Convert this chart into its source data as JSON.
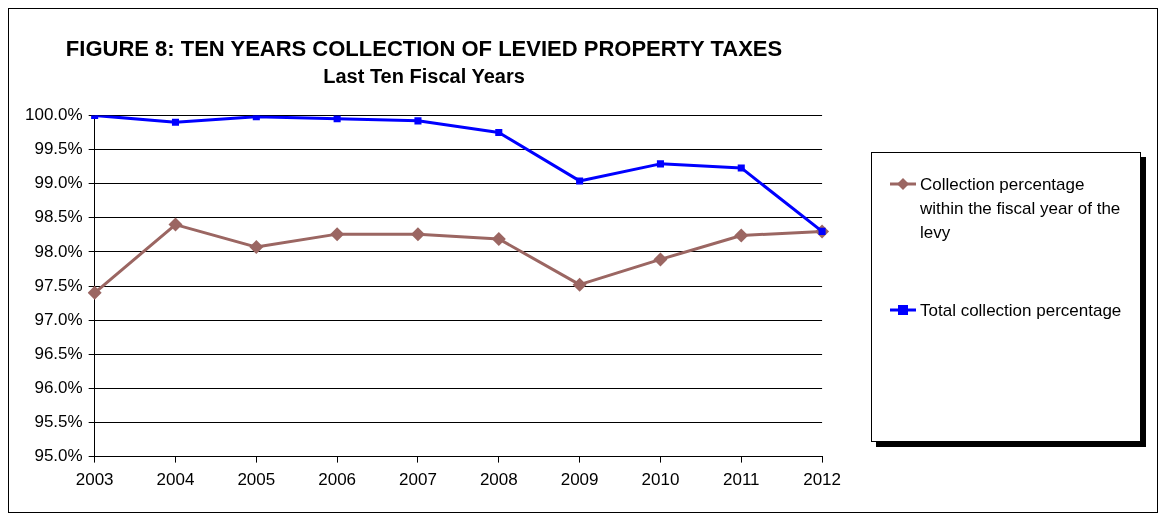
{
  "chart_data": {
    "type": "line",
    "title": "FIGURE 8: TEN YEARS COLLECTION OF LEVIED PROPERTY TAXES",
    "subtitle": "Last Ten Fiscal Years",
    "categories": [
      "2003",
      "2004",
      "2005",
      "2006",
      "2007",
      "2008",
      "2009",
      "2010",
      "2011",
      "2012"
    ],
    "series": [
      {
        "name": "Collection percentage within the fiscal year of the levy",
        "color": "#9b6662",
        "marker": "diamond",
        "values": [
          97.4,
          98.4,
          98.07,
          98.26,
          98.26,
          98.19,
          97.52,
          97.89,
          98.24,
          98.3
        ]
      },
      {
        "name": "Total collection percentage",
        "color": "#0000ff",
        "marker": "square",
        "values": [
          100.0,
          99.9,
          99.98,
          99.95,
          99.92,
          99.75,
          99.04,
          99.29,
          99.23,
          98.3
        ]
      }
    ],
    "ylim": [
      95,
      100
    ],
    "yticks": [
      {
        "value": 95,
        "label": "95.0%"
      },
      {
        "value": 95.5,
        "label": "95.5%"
      },
      {
        "value": 96,
        "label": "96.0%"
      },
      {
        "value": 96.5,
        "label": "96.5%"
      },
      {
        "value": 97,
        "label": "97.0%"
      },
      {
        "value": 97.5,
        "label": "97.5%"
      },
      {
        "value": 98,
        "label": "98.0%"
      },
      {
        "value": 98.5,
        "label": "98.5%"
      },
      {
        "value": 99,
        "label": "99.0%"
      },
      {
        "value": 99.5,
        "label": "99.5%"
      },
      {
        "value": 100,
        "label": "100.0%"
      }
    ],
    "grid": "y",
    "legend": "right",
    "line_style": "solid"
  }
}
